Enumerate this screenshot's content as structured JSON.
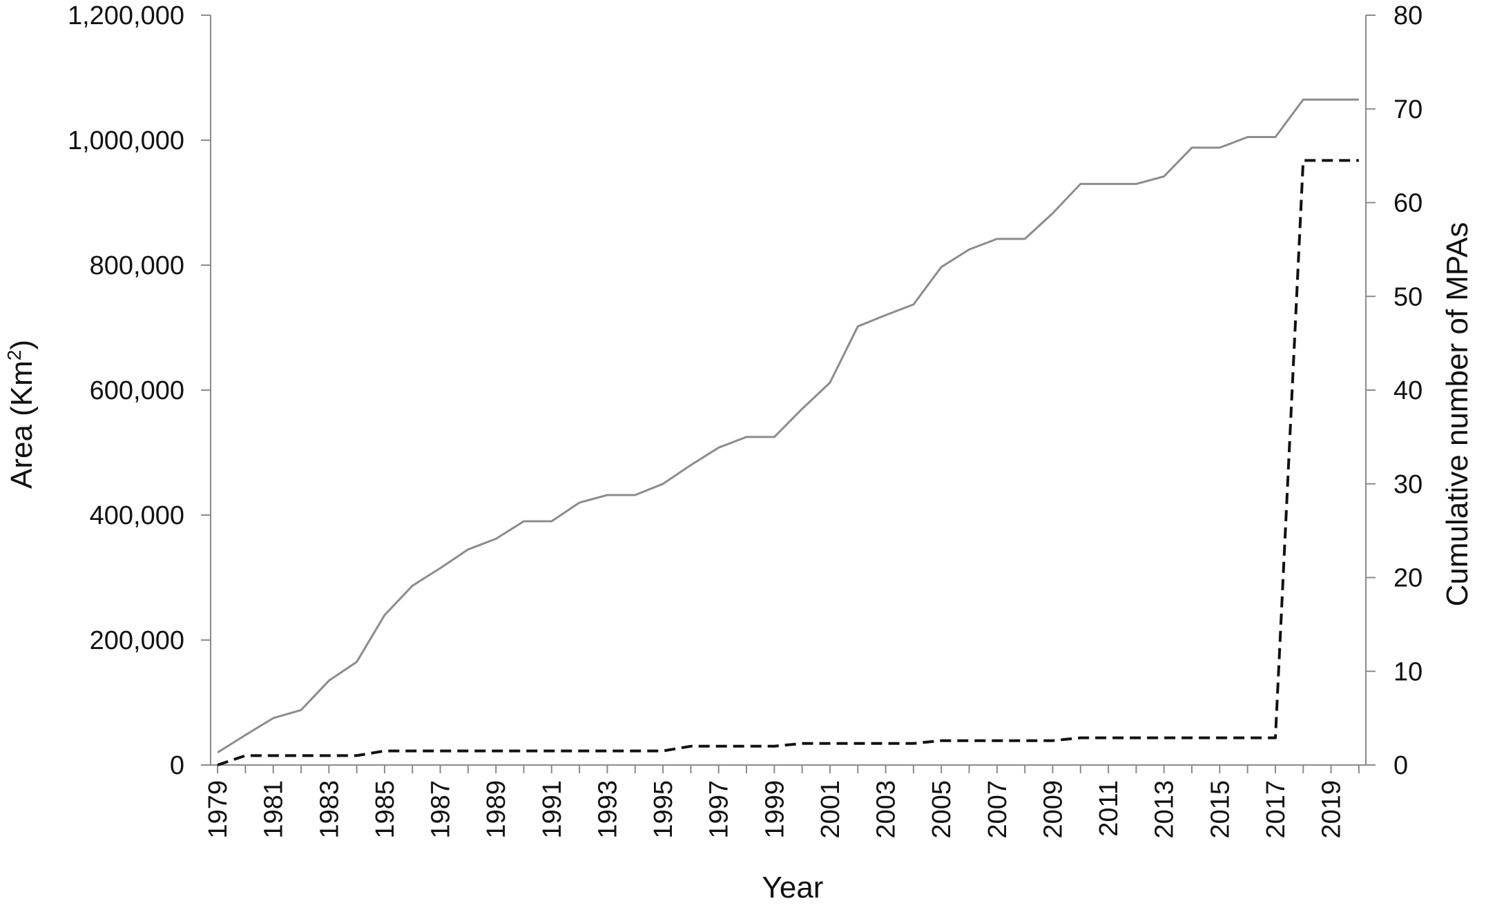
{
  "chart_data": {
    "type": "line",
    "x": [
      1979,
      1980,
      1981,
      1982,
      1983,
      1984,
      1985,
      1986,
      1987,
      1988,
      1989,
      1990,
      1991,
      1992,
      1993,
      1994,
      1995,
      1996,
      1997,
      1998,
      1999,
      2000,
      2001,
      2002,
      2003,
      2004,
      2005,
      2006,
      2007,
      2008,
      2009,
      2010,
      2011,
      2012,
      2013,
      2014,
      2015,
      2016,
      2017,
      2018,
      2019,
      2020
    ],
    "x_tick_labels": [
      "1979",
      "1981",
      "1983",
      "1985",
      "1987",
      "1989",
      "1991",
      "1993",
      "1995",
      "1997",
      "1999",
      "2001",
      "2003",
      "2005",
      "2007",
      "2009",
      "2011",
      "2013",
      "2015",
      "2017",
      "2019"
    ],
    "xlabel": "Year",
    "ylabel_left": "Area (Km",
    "ylabel_left_sup": "2",
    "ylabel_left_close": ")",
    "ylabel_right": "Cumulative number of MPAs",
    "ylim_left": [
      0,
      1200000
    ],
    "ylim_right": [
      0,
      80
    ],
    "y_left_ticks": [
      "0",
      "200,000",
      "400,000",
      "600,000",
      "800,000",
      "1,000,000",
      "1,200,000"
    ],
    "y_right_ticks": [
      "0",
      "10",
      "20",
      "30",
      "40",
      "50",
      "60",
      "70",
      "80"
    ],
    "grid": false,
    "series": [
      {
        "axis": "left",
        "style": "solid",
        "color": "#8c8c8c",
        "values": [
          20000,
          48000,
          75000,
          88000,
          135000,
          165000,
          240000,
          287000,
          315000,
          345000,
          362000,
          390000,
          390000,
          420000,
          432000,
          432000,
          450000,
          480000,
          508000,
          525000,
          525000,
          570000,
          612000,
          702000,
          720000,
          737000,
          797000,
          825000,
          842000,
          842000,
          883000,
          930000,
          930000,
          930000,
          942000,
          988000,
          988000,
          1005000,
          1005000,
          1065000,
          1065000,
          1065000
        ]
      },
      {
        "axis": "right",
        "style": "dashed",
        "color": "#111111",
        "values": [
          0,
          1,
          1,
          1,
          1,
          1,
          1.5,
          1.5,
          1.5,
          1.5,
          1.5,
          1.5,
          1.5,
          1.5,
          1.5,
          1.5,
          1.5,
          2,
          2,
          2,
          2,
          2.3,
          2.3,
          2.3,
          2.3,
          2.3,
          2.6,
          2.6,
          2.6,
          2.6,
          2.6,
          2.9,
          2.9,
          2.9,
          2.9,
          2.9,
          2.9,
          2.9,
          2.9,
          64.5,
          64.5,
          64.5
        ]
      }
    ]
  }
}
